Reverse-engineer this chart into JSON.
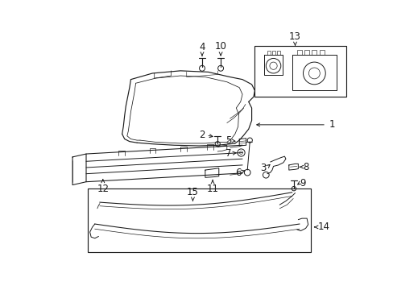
{
  "bg_color": "#ffffff",
  "line_color": "#1a1a1a",
  "lw": 0.7,
  "fig_width": 4.89,
  "fig_height": 3.6,
  "dpi": 100
}
